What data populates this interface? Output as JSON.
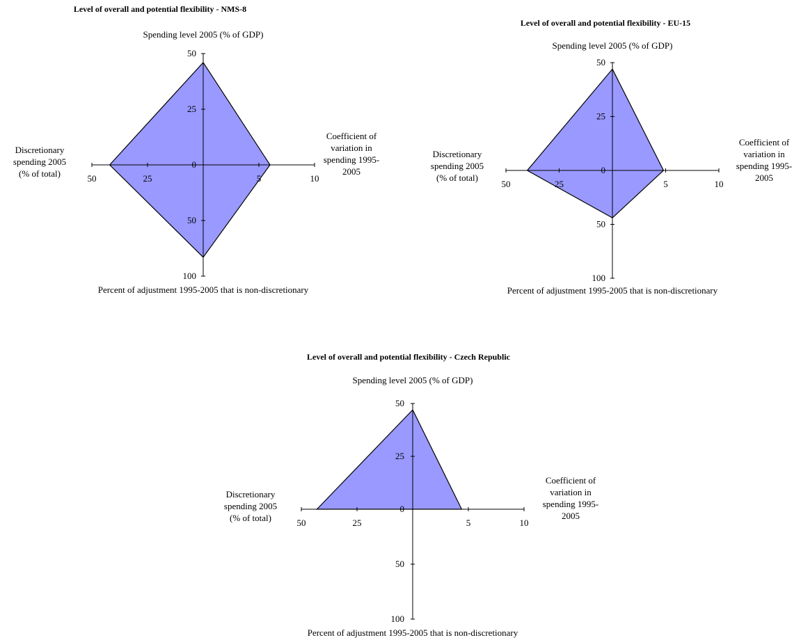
{
  "colors": {
    "fill": "#9999ff",
    "stroke": "#000000",
    "axis": "#000000"
  },
  "chart_data": [
    {
      "type": "radar",
      "title": "Level of overall and potential flexibility - NMS-8",
      "axis_labels": {
        "top": "Spending level 2005 (% of GDP)",
        "right": [
          "Coefficient of",
          "variation in",
          "spending 1995-",
          "2005"
        ],
        "left": [
          "Discretionary",
          "spending 2005",
          "(% of total)"
        ],
        "bottom": "Percent of adjustment 1995-2005 that is non-discretionary"
      },
      "axes": [
        {
          "name": "Spending level 2005 (% of GDP)",
          "direction": "up",
          "range": [
            0,
            50
          ],
          "ticks": [
            "0",
            "25",
            "50"
          ],
          "value": 46
        },
        {
          "name": "Coefficient of variation in spending 1995-2005",
          "direction": "right",
          "range": [
            0,
            10
          ],
          "ticks": [
            "5",
            "10"
          ],
          "value": 6.0
        },
        {
          "name": "Percent of adjustment 1995-2005 that is non-discretionary",
          "direction": "down",
          "range": [
            0,
            100
          ],
          "ticks": [
            "50",
            "100"
          ],
          "value": 83
        },
        {
          "name": "Discretionary spending 2005 (% of total)",
          "direction": "left",
          "range": [
            0,
            50
          ],
          "ticks": [
            "25",
            "50"
          ],
          "value": 42
        }
      ]
    },
    {
      "type": "radar",
      "title": "Level of overall and potential flexibility - EU-15",
      "axis_labels": {
        "top": "Spending level 2005 (% of GDP)",
        "right": [
          "Coefficient of",
          "variation in",
          "spending 1995-",
          "2005"
        ],
        "left": [
          "Discretionary",
          "spending 2005",
          "(% of total)"
        ],
        "bottom": "Percent of adjustment 1995-2005 that is non-discretionary"
      },
      "axes": [
        {
          "name": "Spending level 2005 (% of GDP)",
          "direction": "up",
          "range": [
            0,
            50
          ],
          "ticks": [
            "0",
            "25",
            "50"
          ],
          "value": 47
        },
        {
          "name": "Coefficient of variation in spending 1995-2005",
          "direction": "right",
          "range": [
            0,
            10
          ],
          "ticks": [
            "5",
            "10"
          ],
          "value": 4.8
        },
        {
          "name": "Percent of adjustment 1995-2005 that is non-discretionary",
          "direction": "down",
          "range": [
            0,
            100
          ],
          "ticks": [
            "50",
            "100"
          ],
          "value": 44
        },
        {
          "name": "Discretionary spending 2005 (% of total)",
          "direction": "left",
          "range": [
            0,
            50
          ],
          "ticks": [
            "25",
            "50"
          ],
          "value": 40
        }
      ]
    },
    {
      "type": "radar",
      "title": "Level of overall and potential flexibility - Czech Republic",
      "axis_labels": {
        "top": "Spending level 2005 (% of GDP)",
        "right": [
          "Coefficient of",
          "variation in",
          "spending 1995-",
          "2005"
        ],
        "left": [
          "Discretionary",
          "spending 2005",
          "(% of total)"
        ],
        "bottom": "Percent of adjustment 1995-2005 that is non-discretionary"
      },
      "axes": [
        {
          "name": "Spending level 2005 (% of GDP)",
          "direction": "up",
          "range": [
            0,
            50
          ],
          "ticks": [
            "0",
            "25",
            "50"
          ],
          "value": 47
        },
        {
          "name": "Coefficient of variation in spending 1995-2005",
          "direction": "right",
          "range": [
            0,
            10
          ],
          "ticks": [
            "5",
            "10"
          ],
          "value": 4.4
        },
        {
          "name": "Percent of adjustment 1995-2005 that is non-discretionary",
          "direction": "down",
          "range": [
            0,
            100
          ],
          "ticks": [
            "50",
            "100"
          ],
          "value": 0
        },
        {
          "name": "Discretionary spending 2005 (% of total)",
          "direction": "left",
          "range": [
            0,
            50
          ],
          "ticks": [
            "25",
            "50"
          ],
          "value": 43
        }
      ]
    }
  ]
}
